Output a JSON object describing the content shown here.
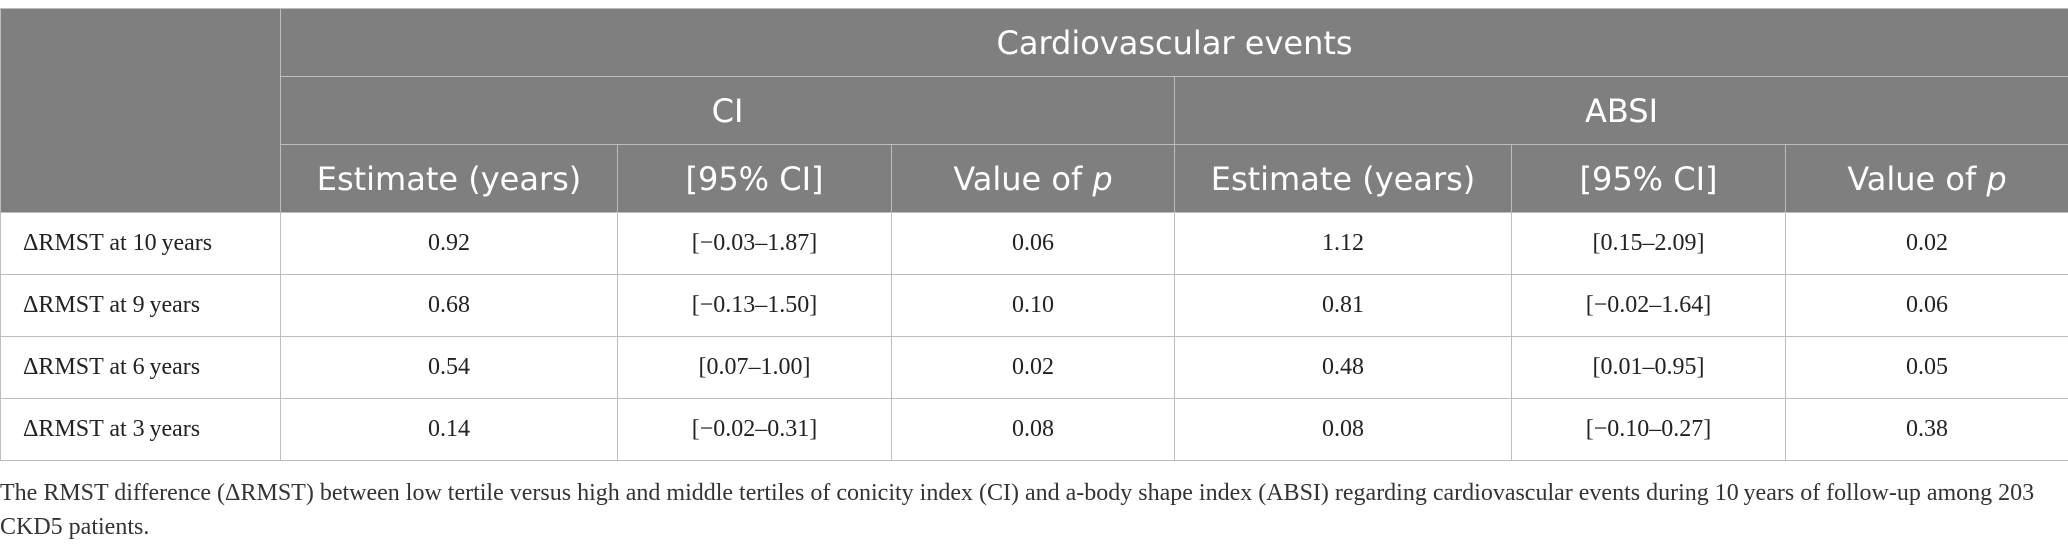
{
  "table": {
    "group_header": "Cardiovascular events",
    "subgroups": [
      "CI",
      "ABSI"
    ],
    "columns": [
      {
        "main": "Estimate (years)",
        "ital": ""
      },
      {
        "main": "[95% CI]",
        "ital": ""
      },
      {
        "main": "Value of ",
        "ital": "p"
      },
      {
        "main": "Estimate (years)",
        "ital": ""
      },
      {
        "main": "[95% CI]",
        "ital": ""
      },
      {
        "main": "Value of ",
        "ital": "p"
      }
    ],
    "rows": [
      {
        "label": "ΔRMST at 10 years",
        "cells": [
          "0.92",
          "[−0.03–1.87]",
          "0.06",
          "1.12",
          "[0.15–2.09]",
          "0.02"
        ]
      },
      {
        "label": "ΔRMST at 9 years",
        "cells": [
          "0.68",
          "[−0.13–1.50]",
          "0.10",
          "0.81",
          "[−0.02–1.64]",
          "0.06"
        ]
      },
      {
        "label": "ΔRMST at 6 years",
        "cells": [
          "0.54",
          "[0.07–1.00]",
          "0.02",
          "0.48",
          "[0.01–0.95]",
          "0.05"
        ]
      },
      {
        "label": "ΔRMST at 3 years",
        "cells": [
          "0.14",
          "[−0.02–0.31]",
          "0.08",
          "0.08",
          "[−0.10–0.27]",
          "0.38"
        ]
      }
    ]
  },
  "caption": "The RMST difference (ΔRMST) between low tertile versus high and middle tertiles of conicity index (CI) and a-body shape index (ABSI) regarding cardiovascular events during 10 years of follow-up among 203 CKD5 patients."
}
